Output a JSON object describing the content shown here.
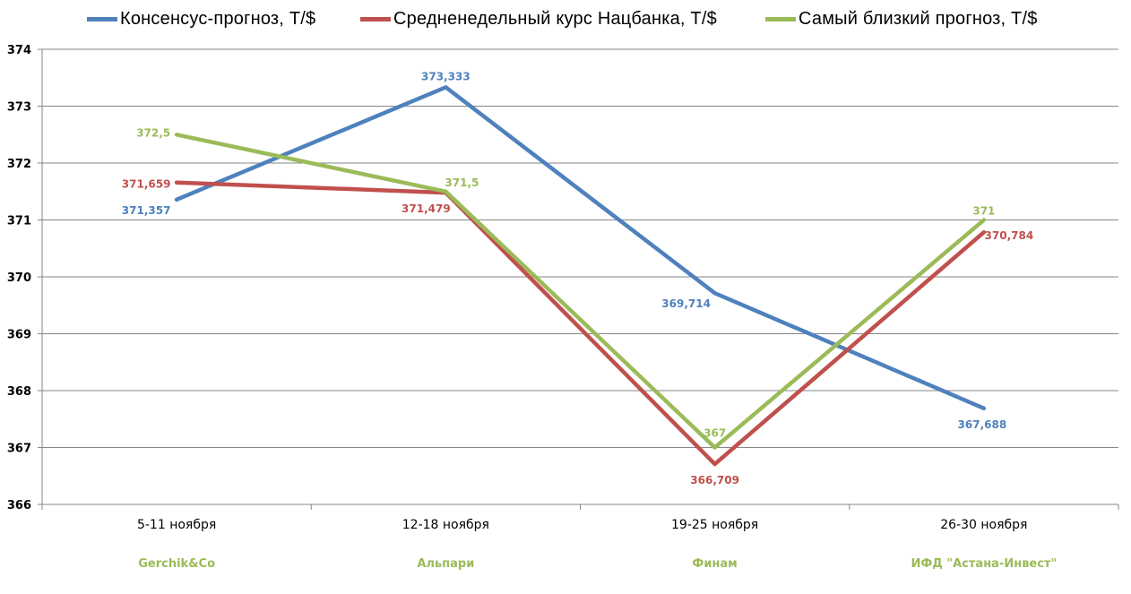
{
  "chart_data": {
    "type": "line",
    "categories": [
      "5-11 ноября",
      "12-18 ноября",
      "19-25 ноября",
      "26-30 ноября"
    ],
    "category_sublabels": [
      "Gerchik&Co",
      "Альпари",
      "Финам",
      "ИФД \"Астана-Инвест\""
    ],
    "ylim": [
      366,
      374
    ],
    "yticks": [
      366,
      367,
      368,
      369,
      370,
      371,
      372,
      373,
      374
    ],
    "grid": true,
    "legend_position": "top",
    "series": [
      {
        "name": "Консенсус-прогноз, Т/$",
        "color": "#4f81bd",
        "values": [
          371.357,
          373.333,
          369.714,
          367.688
        ],
        "labels": [
          "371,357",
          "373,333",
          "369,714",
          "367,688"
        ]
      },
      {
        "name": "Средненедельный  курс Нацбанка, Т/$",
        "color": "#c0504d",
        "values": [
          371.659,
          371.479,
          366.709,
          370.784
        ],
        "labels": [
          "371,659",
          "371,479",
          "366,709",
          "370,784"
        ]
      },
      {
        "name": "Самый близкий прогноз, Т/$",
        "color": "#9bbb59",
        "values": [
          372.5,
          371.5,
          367,
          371
        ],
        "labels": [
          "372,5",
          "371,5",
          "367",
          "371"
        ]
      }
    ],
    "sublabel_color": "#9bbb59"
  }
}
